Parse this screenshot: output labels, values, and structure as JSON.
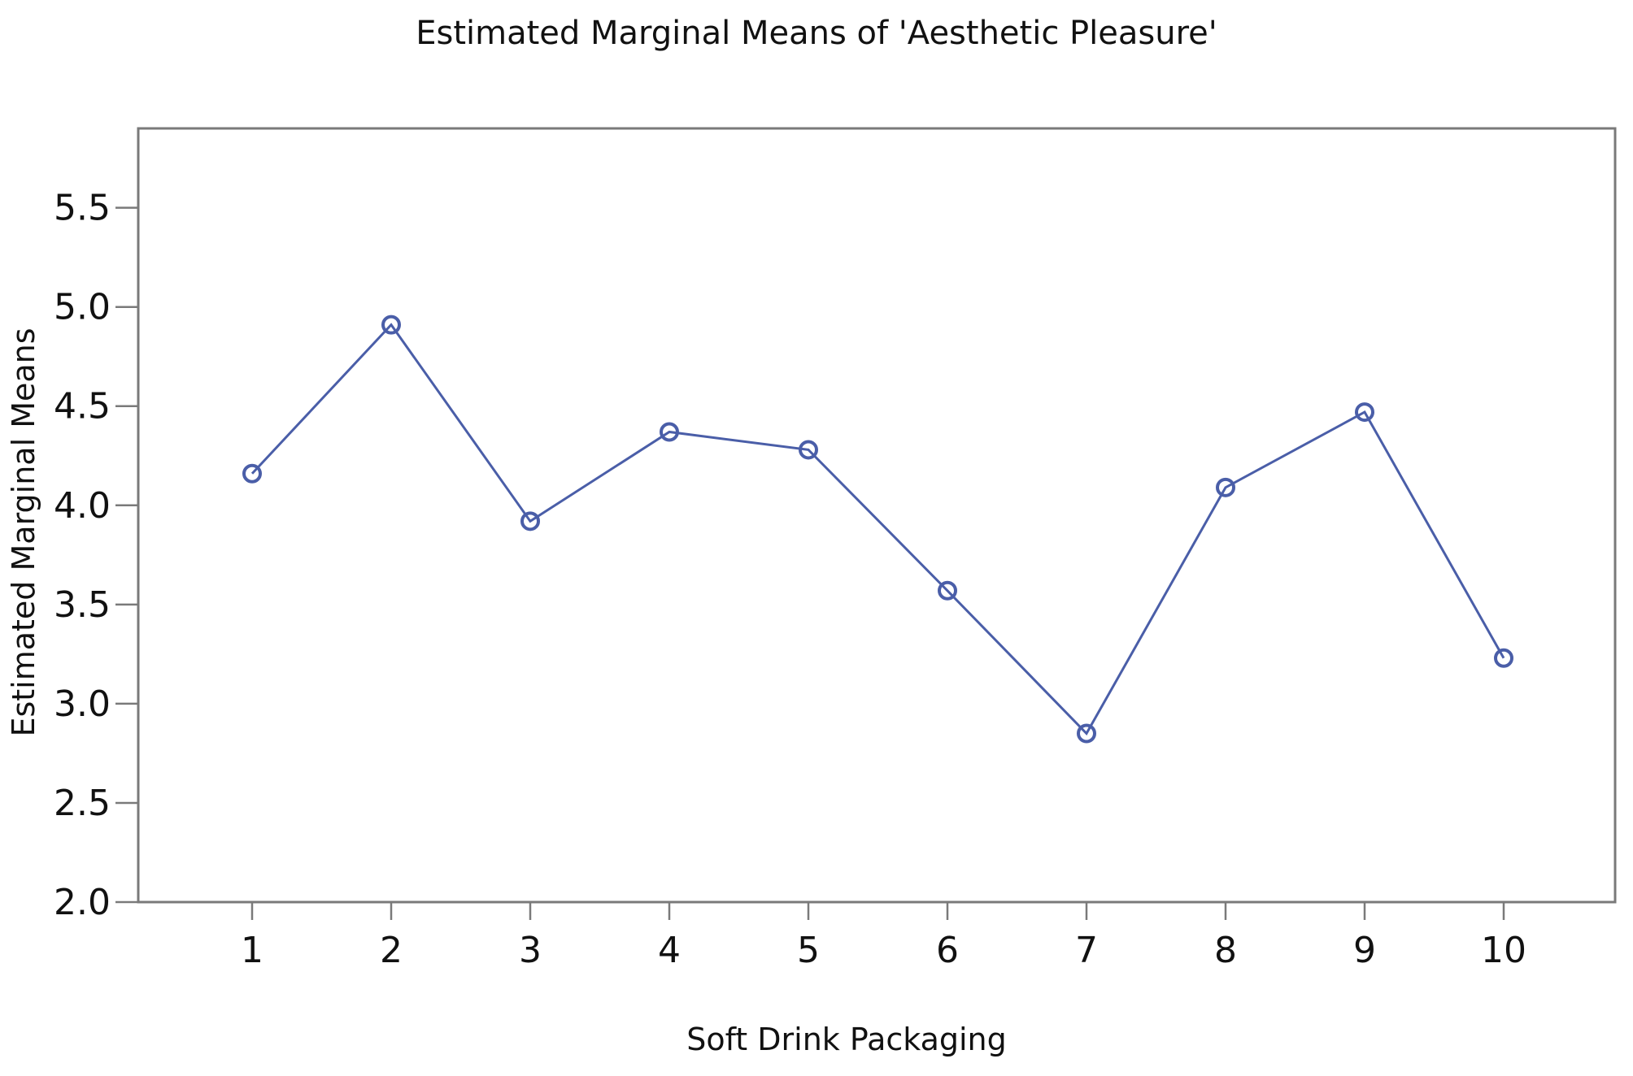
{
  "chart_data": {
    "type": "line",
    "title": "Estimated Marginal Means of 'Aesthetic Pleasure'",
    "xlabel": "Soft Drink Packaging",
    "ylabel": "Estimated Marginal Means",
    "categories": [
      "1",
      "2",
      "3",
      "4",
      "5",
      "6",
      "7",
      "8",
      "9",
      "10"
    ],
    "series": [
      {
        "values": [
          4.16,
          4.91,
          3.92,
          4.37,
          4.28,
          3.57,
          2.85,
          4.09,
          4.47,
          3.23
        ],
        "color": "#4a5ea8"
      }
    ],
    "ylim": [
      2.0,
      5.9
    ],
    "yticks": [
      2.0,
      2.5,
      3.0,
      3.5,
      4.0,
      4.5,
      5.0,
      5.5
    ],
    "ytick_labels": [
      "2.0",
      "2.5",
      "3.0",
      "3.5",
      "4.0",
      "4.5",
      "5.0",
      "5.5"
    ],
    "grid": false,
    "marker": "open-circle",
    "frame_color": "#7a7a7a",
    "text_color": "#111111"
  }
}
